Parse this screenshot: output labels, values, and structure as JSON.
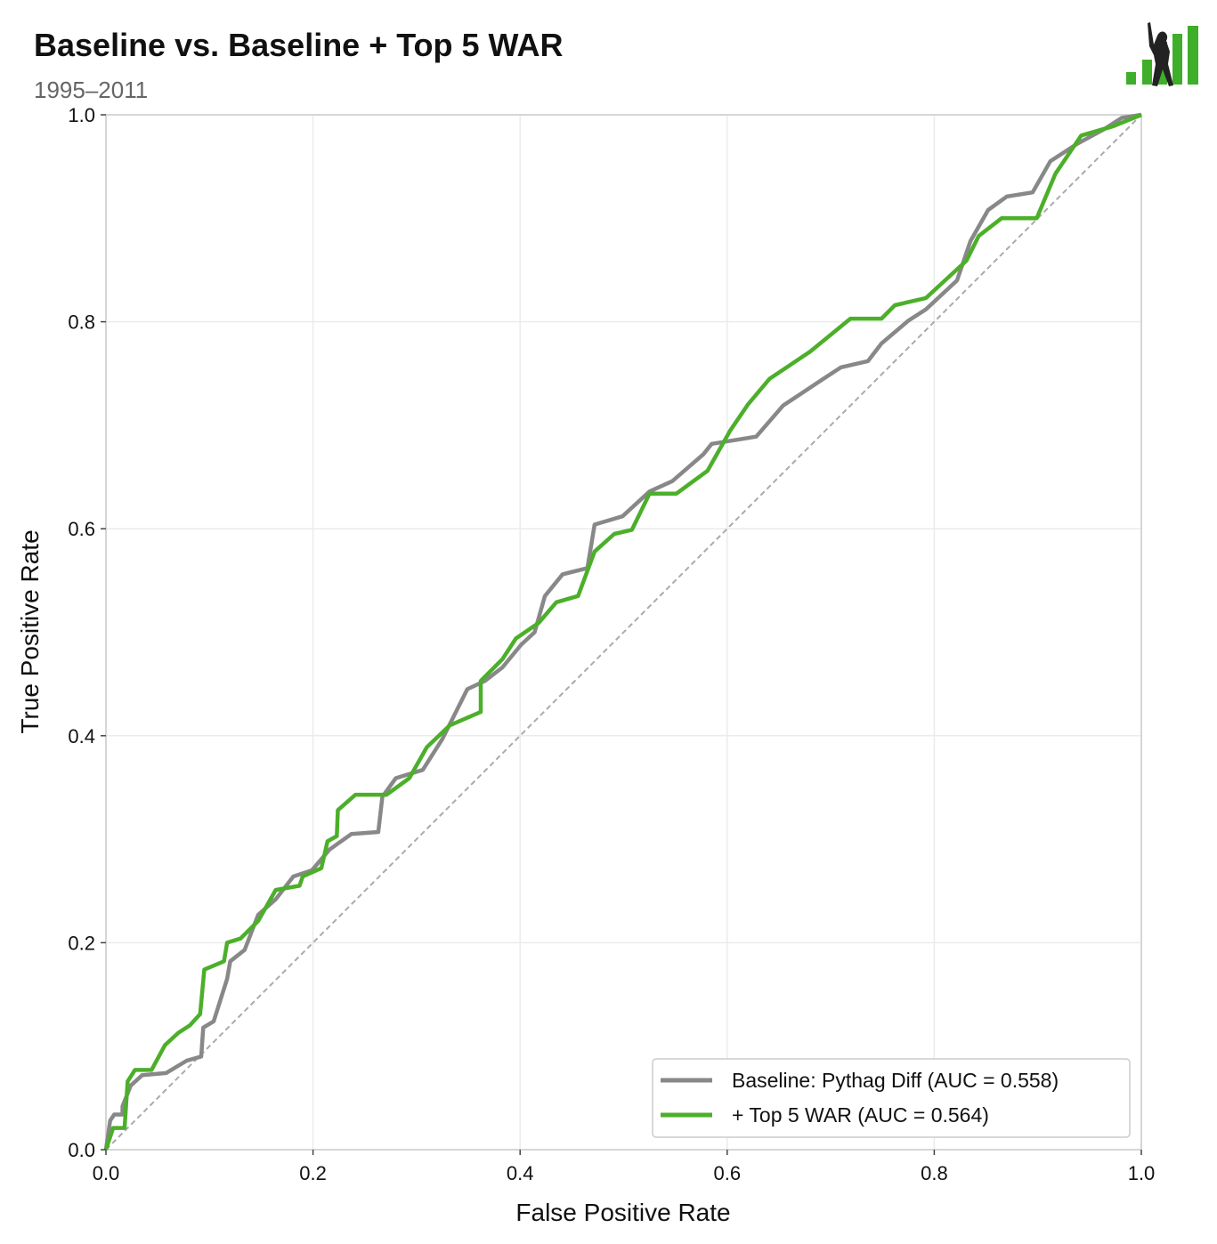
{
  "chart_data": {
    "type": "line",
    "title": "Baseline vs. Baseline + Top 5 WAR",
    "subtitle": "1995–2011",
    "xlabel": "False Positive Rate",
    "ylabel": "True Positive Rate",
    "xlim": [
      0,
      1
    ],
    "ylim": [
      0,
      1
    ],
    "xticks": [
      "0.0",
      "0.2",
      "0.4",
      "0.6",
      "0.8",
      "1.0"
    ],
    "yticks": [
      "0.0",
      "0.2",
      "0.4",
      "0.6",
      "0.8",
      "1.0"
    ],
    "grid": true,
    "legend_position": "bottom-right",
    "reference_line": {
      "x": [
        0,
        1
      ],
      "y": [
        0,
        1
      ],
      "color": "#aaaaaa",
      "style": "dashed"
    },
    "series": [
      {
        "name": "Baseline: Pythag Diff (AUC = 0.558)",
        "color": "#888888",
        "x": [
          0,
          0.004,
          0.008,
          0.016,
          0.016,
          0.024,
          0.035,
          0.058,
          0.078,
          0.092,
          0.094,
          0.104,
          0.117,
          0.12,
          0.134,
          0.147,
          0.164,
          0.181,
          0.199,
          0.216,
          0.237,
          0.263,
          0.267,
          0.28,
          0.306,
          0.325,
          0.336,
          0.349,
          0.366,
          0.383,
          0.401,
          0.414,
          0.424,
          0.441,
          0.465,
          0.472,
          0.499,
          0.525,
          0.547,
          0.577,
          0.585,
          0.628,
          0.654,
          0.693,
          0.71,
          0.736,
          0.749,
          0.775,
          0.792,
          0.822,
          0.835,
          0.852,
          0.87,
          0.895,
          0.912,
          0.938,
          0.964,
          0.981,
          1
        ],
        "y": [
          0,
          0.028,
          0.034,
          0.034,
          0.042,
          0.062,
          0.072,
          0.074,
          0.086,
          0.09,
          0.118,
          0.124,
          0.165,
          0.182,
          0.193,
          0.227,
          0.242,
          0.264,
          0.27,
          0.29,
          0.305,
          0.307,
          0.341,
          0.359,
          0.367,
          0.397,
          0.419,
          0.445,
          0.453,
          0.466,
          0.488,
          0.5,
          0.535,
          0.556,
          0.562,
          0.604,
          0.612,
          0.636,
          0.646,
          0.672,
          0.682,
          0.689,
          0.719,
          0.745,
          0.756,
          0.762,
          0.779,
          0.801,
          0.812,
          0.84,
          0.878,
          0.908,
          0.921,
          0.925,
          0.955,
          0.972,
          0.986,
          0.997,
          1
        ]
      },
      {
        "name": "+ Top 5 WAR (AUC = 0.564)",
        "color": "#4caf2a",
        "x": [
          0,
          0.007,
          0.018,
          0.021,
          0.028,
          0.044,
          0.057,
          0.07,
          0.081,
          0.091,
          0.095,
          0.114,
          0.117,
          0.13,
          0.147,
          0.164,
          0.187,
          0.19,
          0.208,
          0.214,
          0.223,
          0.224,
          0.241,
          0.271,
          0.293,
          0.31,
          0.332,
          0.362,
          0.362,
          0.383,
          0.396,
          0.418,
          0.435,
          0.456,
          0.472,
          0.491,
          0.508,
          0.525,
          0.551,
          0.581,
          0.603,
          0.62,
          0.641,
          0.68,
          0.719,
          0.749,
          0.762,
          0.792,
          0.831,
          0.843,
          0.865,
          0.899,
          0.917,
          0.942,
          0.973,
          1
        ],
        "y": [
          0,
          0.021,
          0.021,
          0.066,
          0.077,
          0.077,
          0.101,
          0.113,
          0.12,
          0.131,
          0.174,
          0.182,
          0.2,
          0.204,
          0.221,
          0.251,
          0.255,
          0.264,
          0.272,
          0.298,
          0.303,
          0.328,
          0.343,
          0.343,
          0.359,
          0.389,
          0.41,
          0.423,
          0.453,
          0.474,
          0.494,
          0.509,
          0.529,
          0.535,
          0.578,
          0.595,
          0.599,
          0.634,
          0.634,
          0.656,
          0.695,
          0.72,
          0.745,
          0.771,
          0.803,
          0.803,
          0.816,
          0.823,
          0.859,
          0.883,
          0.9,
          0.9,
          0.943,
          0.98,
          0.989,
          1
        ]
      }
    ]
  },
  "logo": {
    "bar_color": "#3fae2a",
    "figure_color": "#222222"
  }
}
